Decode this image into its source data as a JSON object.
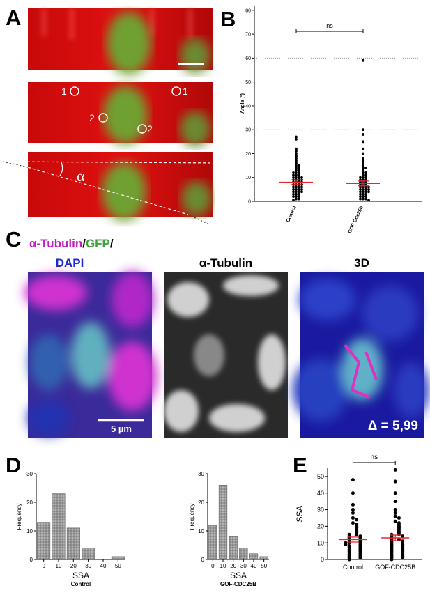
{
  "panel_labels": [
    "A",
    "B",
    "C",
    "D",
    "E"
  ],
  "panel_a": {
    "markers": [
      "1",
      "1",
      "2",
      "2"
    ],
    "angle_label": "α"
  },
  "panel_c": {
    "legend_parts": [
      "α-Tubulin",
      "/",
      "GFP",
      "/",
      "DAPI"
    ],
    "titles": [
      "α-Tubulin",
      "3D"
    ],
    "scale_bar": "5 µm",
    "delta": "Δ = 5,99"
  },
  "chart_data": [
    {
      "type": "dotplot",
      "ylabel": "Angle (°)",
      "categories": [
        "Control",
        "GOF Cdc25b"
      ],
      "values": [
        [
          27,
          26,
          22,
          21,
          20,
          19,
          18,
          17,
          16,
          15,
          15,
          14,
          14,
          13,
          13,
          12,
          12,
          12,
          11,
          11,
          11,
          10,
          10,
          10,
          10,
          9,
          9,
          9,
          9,
          8,
          8,
          8,
          8,
          7,
          7,
          7,
          7,
          6,
          6,
          6,
          6,
          5,
          5,
          5,
          5,
          4,
          4,
          4,
          4,
          3,
          3,
          3,
          2,
          2,
          2,
          1,
          1,
          0.5
        ],
        [
          59,
          30,
          28,
          25,
          22,
          20,
          18,
          17,
          16,
          15,
          14,
          14,
          13,
          12,
          12,
          11,
          11,
          10,
          10,
          10,
          9,
          9,
          9,
          8,
          8,
          8,
          7,
          7,
          7,
          6,
          6,
          6,
          6,
          5,
          5,
          5,
          5,
          4,
          4,
          4,
          4,
          3,
          3,
          3,
          2,
          2,
          2,
          1,
          1,
          1,
          0.5
        ]
      ],
      "means": [
        8,
        7.5
      ],
      "sems": [
        1,
        1
      ],
      "color": "#000000",
      "mean_color": "#e8262b",
      "annotation": "ns",
      "hlines": [
        30,
        60
      ],
      "ylim": [
        0,
        82
      ],
      "yticks": [
        0,
        10,
        20,
        30,
        40,
        50,
        60,
        70,
        80
      ]
    },
    {
      "type": "histogram",
      "xlabel": "SSA",
      "subtitle": "Control",
      "ylabel": "Frequency",
      "bins": [
        -5,
        5,
        15,
        25,
        35,
        45,
        55
      ],
      "values": [
        13,
        23,
        11,
        4,
        0,
        1
      ],
      "color": "#9a9a9a",
      "xlim": [
        -5,
        55
      ],
      "xticks": [
        0,
        10,
        20,
        30,
        40,
        50
      ],
      "ylim": [
        0,
        30
      ],
      "yticks": [
        0,
        10,
        20,
        30
      ]
    },
    {
      "type": "histogram",
      "xlabel": "SSA",
      "subtitle": "GOF-CDC25B",
      "ylabel": "Frequency",
      "bins": [
        -5,
        5,
        15,
        25,
        35,
        45,
        55
      ],
      "values": [
        12,
        26,
        8,
        4,
        2,
        1
      ],
      "color": "#9a9a9a",
      "xlim": [
        -5,
        55
      ],
      "xticks": [
        0,
        10,
        20,
        30,
        40,
        50
      ],
      "ylim": [
        0,
        30
      ],
      "yticks": [
        0,
        10,
        20,
        30
      ]
    },
    {
      "type": "dotplot",
      "ylabel": "SSA",
      "categories": [
        "Control",
        "GOF-CDC25B"
      ],
      "values": [
        [
          48,
          40,
          33,
          30,
          28,
          25,
          24,
          22,
          21,
          20,
          19,
          18,
          17,
          16,
          15,
          15,
          14,
          14,
          13,
          13,
          12,
          12,
          11,
          11,
          10,
          10,
          10,
          9,
          9,
          8,
          8,
          7,
          7,
          6,
          6,
          5,
          5,
          4,
          4,
          3,
          3,
          2,
          2,
          1,
          1,
          0
        ],
        [
          54,
          47,
          40,
          35,
          30,
          28,
          26,
          25,
          23,
          22,
          21,
          20,
          19,
          18,
          17,
          16,
          15,
          15,
          14,
          14,
          13,
          12,
          12,
          11,
          11,
          10,
          10,
          9,
          9,
          8,
          8,
          7,
          7,
          6,
          6,
          5,
          5,
          4,
          4,
          3,
          3,
          2,
          2,
          1,
          1,
          0
        ]
      ],
      "means": [
        12,
        13
      ],
      "sems": [
        1.5,
        1.7
      ],
      "color": "#000000",
      "mean_color": "#e8262b",
      "annotation": "ns",
      "ylim": [
        0,
        55
      ],
      "yticks": [
        0,
        10,
        20,
        30,
        40,
        50
      ]
    }
  ]
}
